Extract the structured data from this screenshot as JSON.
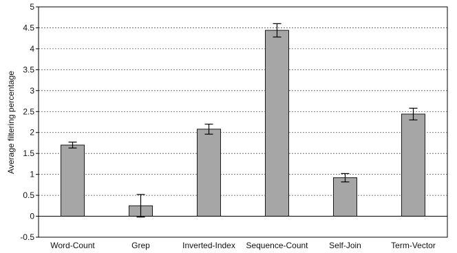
{
  "chart_data": {
    "type": "bar",
    "title": "",
    "xlabel": "",
    "ylabel": "Average filtering percentage",
    "categories": [
      "Word-Count",
      "Grep",
      "Inverted-Index",
      "Sequence-Count",
      "Self-Join",
      "Term-Vector"
    ],
    "values": [
      1.7,
      0.25,
      2.08,
      4.44,
      0.92,
      2.44
    ],
    "error": [
      0.07,
      0.27,
      0.12,
      0.16,
      0.1,
      0.14
    ],
    "ylim": [
      -0.5,
      5
    ],
    "yticks": [
      "-0.5",
      "0",
      "0.5",
      "1",
      "1.5",
      "2",
      "2.5",
      "3",
      "3.5",
      "4",
      "4.5",
      "5"
    ],
    "grid": "horizontal dotted",
    "legend": "none",
    "colors": {
      "bar": "#a6a6a6",
      "bar_edge": "#1a1a1a",
      "axis": "#000000",
      "grid": "#555555"
    }
  }
}
